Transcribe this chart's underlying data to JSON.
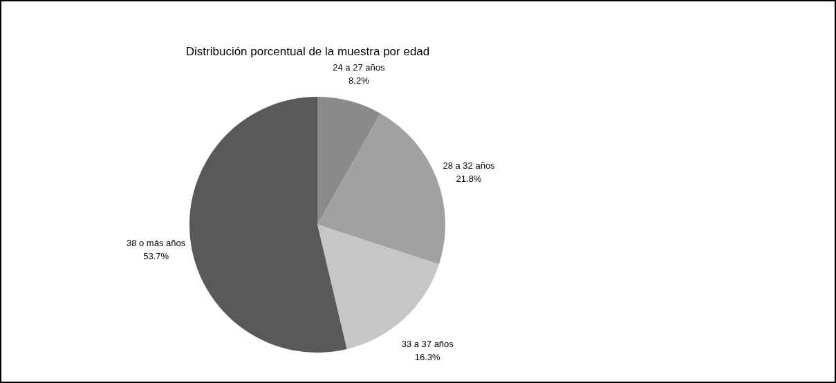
{
  "chart_data": {
    "type": "pie",
    "title": "Distribución porcentual de la muestra por edad",
    "categories": [
      "24 a 27 años",
      "28 a 32 años",
      "33 a 37 años",
      "38 o más años"
    ],
    "values": [
      8.2,
      21.8,
      16.3,
      53.7
    ],
    "colors": [
      "#8a8a8a",
      "#a1a1a1",
      "#c6c6c6",
      "#595959"
    ],
    "value_labels": [
      "8.2%",
      "21.8%",
      "16.3%",
      "53.7%"
    ]
  }
}
